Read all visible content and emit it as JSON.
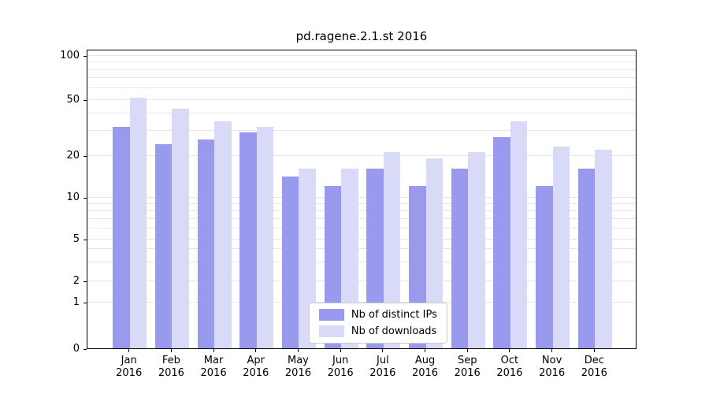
{
  "figure": {
    "background": "#ffffff",
    "axis_color": "#000000",
    "grid_color": "#e6e6e6",
    "legend_border_color": "#cccccc"
  },
  "chart_data": {
    "type": "bar",
    "title": "pd.ragene.2.1.st 2016",
    "categories": [
      "Jan",
      "Feb",
      "Mar",
      "Apr",
      "May",
      "Jun",
      "Jul",
      "Aug",
      "Sep",
      "Oct",
      "Nov",
      "Dec"
    ],
    "category_year": "2016",
    "series": [
      {
        "name": "Nb of distinct IPs",
        "color": "#9999ee",
        "values": [
          32,
          24,
          26,
          29,
          14,
          12,
          16,
          12,
          16,
          27,
          12,
          16
        ]
      },
      {
        "name": "Nb of downloads",
        "color": "#d9d9f8",
        "values": [
          51,
          43,
          35,
          32,
          16,
          16,
          21,
          19,
          21,
          35,
          23,
          22
        ]
      }
    ],
    "yscale": "symlog",
    "ylim": [
      0,
      100
    ],
    "yticks": [
      0,
      1,
      2,
      5,
      10,
      20,
      50,
      100
    ],
    "grid": "horizontal log minor gridlines",
    "legend_position": "lower center inside plot",
    "xlabel": "",
    "ylabel": ""
  }
}
